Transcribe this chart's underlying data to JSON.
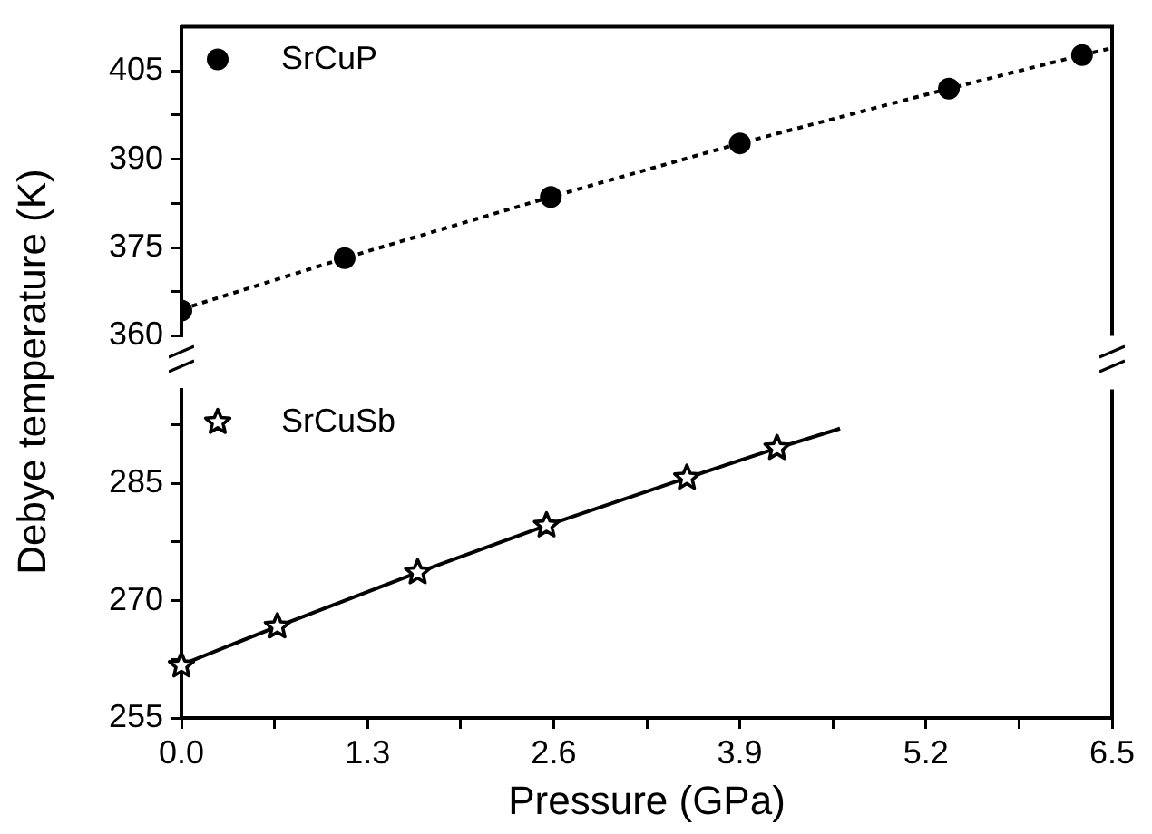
{
  "chart_data": [
    {
      "type": "scatter",
      "ylabel": "Debye temperature (K)",
      "xlim": [
        0,
        6.5
      ],
      "tick_labels": "y",
      "ylim": [
        360,
        412.5
      ],
      "yticks": [
        360,
        {
          "value": 367.5,
          "label": null
        },
        375,
        {
          "value": 382.5,
          "label": null
        },
        390,
        {
          "value": 397.5,
          "label": null
        },
        405
      ],
      "grid": false,
      "legend": "top left",
      "series": [
        {
          "name": "SrCuP",
          "color": "#000000",
          "marker": "circle",
          "x": [
            0,
            1.14,
            2.58,
            3.9,
            5.36,
            6.29
          ],
          "values": [
            364.3,
            373.2,
            383.6,
            392.7,
            402.0,
            407.7
          ]
        },
        {
          "type": "line",
          "color": "#000000",
          "marker": "none",
          "line_style": "dotted",
          "x": [
            0,
            1.14,
            2.58,
            3.9,
            5.36,
            6.29,
            6.5
          ],
          "values": [
            364.5,
            373.2,
            383.6,
            392.7,
            402.0,
            407.7,
            408.9
          ]
        }
      ]
    },
    {
      "type": "scatter",
      "xlabel": "Pressure (GPa)",
      "xlim": [
        0,
        6.5
      ],
      "xticks": [
        {
          "value": 0,
          "label": "0.0"
        },
        {
          "value": 0.65,
          "label": null
        },
        1.3,
        {
          "value": 1.95,
          "label": null
        },
        2.6,
        {
          "value": 3.25,
          "label": null
        },
        3.9,
        {
          "value": 4.55,
          "label": null
        },
        5.2,
        {
          "value": 5.85,
          "label": null
        },
        6.5
      ],
      "ylim": [
        255,
        297
      ],
      "yticks": [
        255,
        {
          "value": 262.5,
          "label": null
        },
        270,
        {
          "value": 277.5,
          "label": null
        },
        285,
        {
          "value": 292.5,
          "label": null
        }
      ],
      "grid": false,
      "legend": "top left",
      "series": [
        {
          "name": "SrCuSb",
          "color": "#000000",
          "marker": "star",
          "x": [
            0,
            0.67,
            1.65,
            2.55,
            3.53,
            4.16
          ],
          "values": [
            261.7,
            266.7,
            273.6,
            279.6,
            285.7,
            289.5
          ]
        },
        {
          "type": "line",
          "color": "#000000",
          "marker": "none",
          "line_style": "solid",
          "x": [
            0,
            0.67,
            1.65,
            2.55,
            3.53,
            4.16,
            4.6
          ],
          "values": [
            261.8,
            266.7,
            273.6,
            279.6,
            285.7,
            289.5,
            292.0
          ]
        }
      ]
    }
  ]
}
